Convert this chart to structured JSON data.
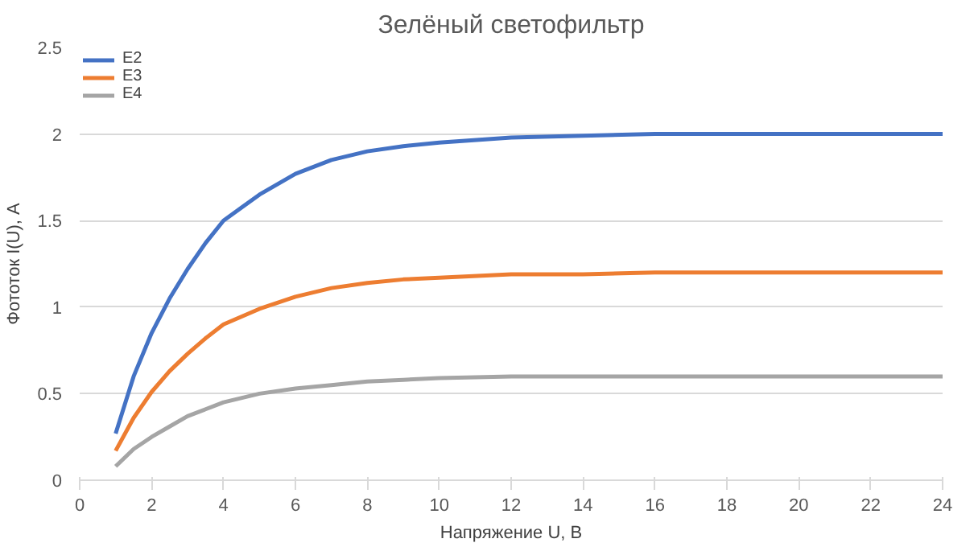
{
  "chart_data": {
    "type": "line",
    "title": "Зелёный светофильтр",
    "xlabel": "Напряжение U, В",
    "ylabel": "Фототок I(U), А",
    "x": [
      1,
      1.5,
      2,
      2.5,
      3,
      3.5,
      4,
      5,
      6,
      7,
      8,
      9,
      10,
      12,
      14,
      16,
      18,
      20,
      22,
      24
    ],
    "series": [
      {
        "name": "E2",
        "color": "#4472c4",
        "values": [
          0.27,
          0.6,
          0.85,
          1.05,
          1.22,
          1.37,
          1.5,
          1.65,
          1.77,
          1.85,
          1.9,
          1.93,
          1.95,
          1.98,
          1.99,
          2,
          2,
          2,
          2,
          2
        ]
      },
      {
        "name": "E3",
        "color": "#ed7d31",
        "values": [
          0.17,
          0.36,
          0.51,
          0.63,
          0.73,
          0.82,
          0.9,
          0.99,
          1.06,
          1.11,
          1.14,
          1.16,
          1.17,
          1.19,
          1.19,
          1.2,
          1.2,
          1.2,
          1.2,
          1.2
        ]
      },
      {
        "name": "E4",
        "color": "#a5a5a5",
        "values": [
          0.08,
          0.18,
          0.25,
          0.31,
          0.37,
          0.41,
          0.45,
          0.5,
          0.53,
          0.55,
          0.57,
          0.58,
          0.59,
          0.6,
          0.6,
          0.6,
          0.6,
          0.6,
          0.6,
          0.6
        ]
      }
    ],
    "xlim": [
      0,
      24
    ],
    "xticks": [
      0,
      2,
      4,
      6,
      8,
      10,
      12,
      14,
      16,
      18,
      20,
      22,
      24
    ],
    "ylim": [
      0,
      2.5
    ],
    "yticks": [
      0,
      0.5,
      1,
      1.5,
      2,
      2.5
    ],
    "grid": "y",
    "legend": "top left",
    "line_style": "solid"
  }
}
